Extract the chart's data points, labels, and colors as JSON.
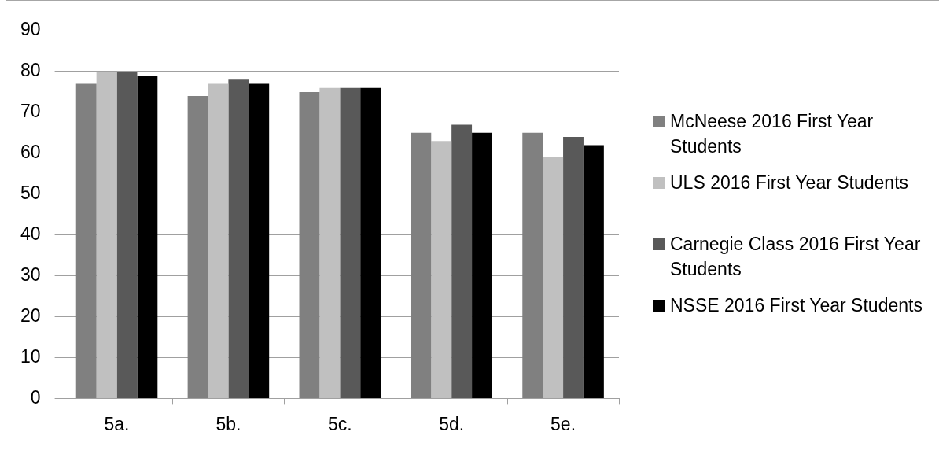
{
  "chart_data": {
    "type": "bar",
    "categories": [
      "5a.",
      "5b.",
      "5c.",
      "5d.",
      "5e."
    ],
    "series": [
      {
        "name": "McNeese 2016 First Year Students",
        "color": "#808080",
        "values": [
          77,
          74,
          75,
          65,
          65
        ]
      },
      {
        "name": "ULS 2016 First Year Students",
        "color": "#c0c0c0",
        "values": [
          80,
          77,
          76,
          63,
          59
        ]
      },
      {
        "name": "Carnegie Class 2016 First Year Students",
        "color": "#595959",
        "values": [
          80,
          78,
          76,
          67,
          64
        ]
      },
      {
        "name": "NSSE 2016 First Year Students",
        "color": "#000000",
        "values": [
          79,
          77,
          76,
          65,
          62
        ]
      }
    ],
    "ylim": [
      0,
      90
    ],
    "yticks": [
      0,
      10,
      20,
      30,
      40,
      50,
      60,
      70,
      80,
      90
    ],
    "grid": "y",
    "legend": "right"
  }
}
